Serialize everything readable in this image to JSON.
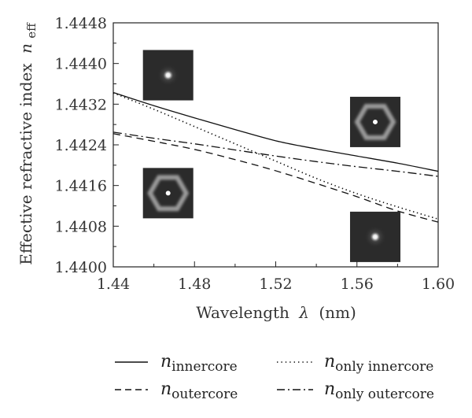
{
  "chart_data": {
    "type": "line",
    "xlabel_text": "Wavelength",
    "xlabel_symbol": "λ",
    "xlabel_unit": "(nm)",
    "ylabel_text": "Effective refractive index",
    "ylabel_symbol": "n",
    "ylabel_sub": "eff",
    "xlim": [
      1.44,
      1.6
    ],
    "ylim": [
      1.44,
      1.4448
    ],
    "xticks": [
      "1.44",
      "1.48",
      "1.52",
      "1.56",
      "1.60"
    ],
    "yticks": [
      "1.4400",
      "1.4408",
      "1.4416",
      "1.4424",
      "1.4432",
      "1.4440",
      "1.4448"
    ],
    "series": [
      {
        "name_main": "n",
        "name_sub": "innercore",
        "dash": "solid",
        "x": [
          1.44,
          1.46,
          1.48,
          1.5,
          1.52,
          1.54,
          1.56,
          1.58,
          1.6
        ],
        "y": [
          1.44343,
          1.44317,
          1.44293,
          1.4427,
          1.44248,
          1.44232,
          1.44218,
          1.44204,
          1.44188
        ]
      },
      {
        "name_main": "n",
        "name_sub": "outercore",
        "dash": "dashed",
        "x": [
          1.44,
          1.46,
          1.48,
          1.5,
          1.52,
          1.54,
          1.56,
          1.58,
          1.6
        ],
        "y": [
          1.44262,
          1.44247,
          1.44231,
          1.44211,
          1.44189,
          1.44164,
          1.44138,
          1.4411,
          1.44088
        ]
      },
      {
        "name_main": "n",
        "name_sub": "only innercore",
        "dash": "dotted",
        "x": [
          1.44,
          1.46,
          1.48,
          1.5,
          1.52,
          1.54,
          1.56,
          1.58,
          1.6
        ],
        "y": [
          1.44342,
          1.4431,
          1.44276,
          1.44242,
          1.44208,
          1.44174,
          1.44144,
          1.44118,
          1.44094
        ]
      },
      {
        "name_main": "n",
        "name_sub": "only outercore",
        "dash": "dashdot",
        "x": [
          1.44,
          1.46,
          1.48,
          1.5,
          1.52,
          1.54,
          1.56,
          1.58,
          1.6
        ],
        "y": [
          1.44265,
          1.44253,
          1.44242,
          1.4423,
          1.44218,
          1.44207,
          1.44197,
          1.44188,
          1.44178
        ]
      }
    ],
    "insets": [
      {
        "pattern": "center-spot",
        "at_x": 1.467,
        "at_y": 1.44377
      },
      {
        "pattern": "hexagon-ring",
        "at_x": 1.467,
        "at_y": 1.44145
      },
      {
        "pattern": "hexagon-ring",
        "at_x": 1.569,
        "at_y": 1.44285
      },
      {
        "pattern": "center-spot",
        "at_x": 1.569,
        "at_y": 1.44059
      }
    ]
  }
}
